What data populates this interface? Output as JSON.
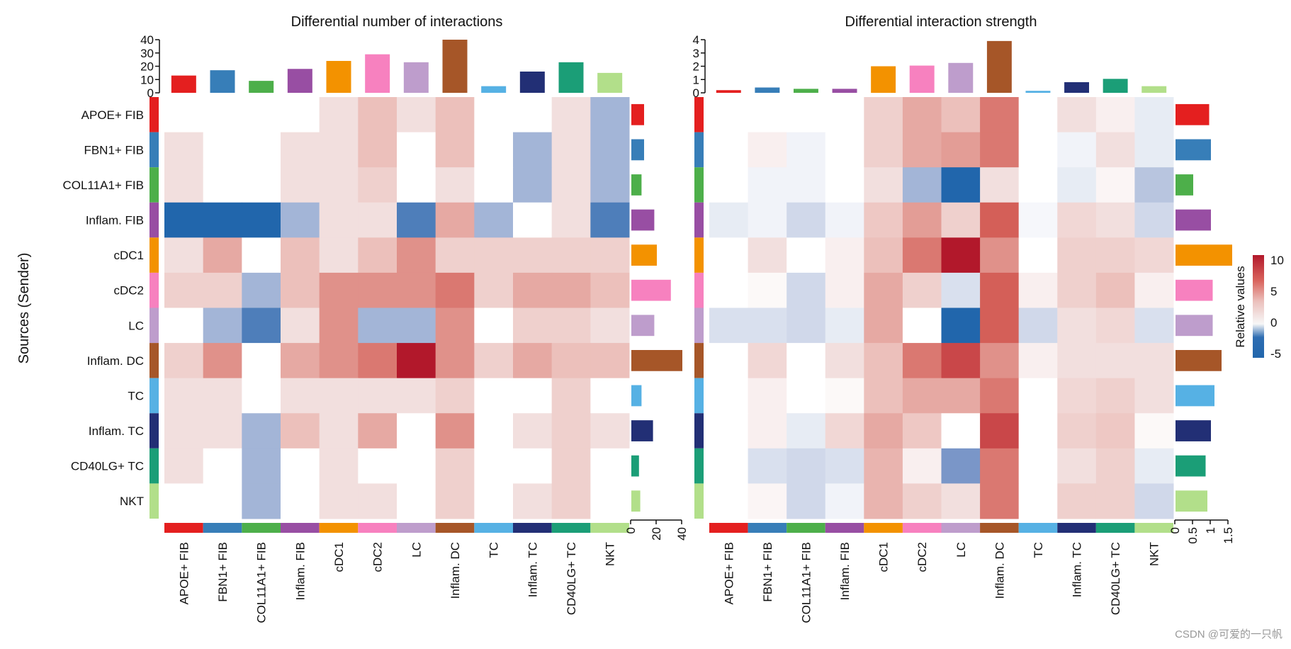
{
  "chart_data": [
    {
      "type": "heatmap",
      "title": "Differential number of interactions",
      "ylabel": "Sources (Sender)",
      "rows": [
        "APOE+ FIB",
        "FBN1+ FIB",
        "COL11A1+ FIB",
        "Inflam. FIB",
        "cDC1",
        "cDC2",
        "LC",
        "Inflam. DC",
        "TC",
        "Inflam. TC",
        "CD40LG+ TC",
        "NKT"
      ],
      "columns": [
        "APOE+ FIB",
        "FBN1+ FIB",
        "COL11A1+ FIB",
        "Inflam. FIB",
        "cDC1",
        "cDC2",
        "LC",
        "Inflam. DC",
        "TC",
        "Inflam. TC",
        "CD40LG+ TC",
        "NKT"
      ],
      "values": [
        [
          0,
          0,
          0,
          0,
          1,
          3,
          1,
          3,
          0,
          0,
          1,
          -2
        ],
        [
          1,
          0,
          0,
          1,
          1,
          3,
          0,
          3,
          0,
          -2,
          1,
          -2
        ],
        [
          1,
          0,
          0,
          1,
          1,
          2,
          0,
          1,
          0,
          -2,
          1,
          -2
        ],
        [
          -5,
          -5,
          -5,
          -2,
          1,
          1,
          -4,
          4,
          -2,
          0,
          1,
          -4
        ],
        [
          1,
          4,
          0,
          3,
          1,
          3,
          5,
          2,
          2,
          2,
          2,
          2
        ],
        [
          2,
          2,
          -2,
          3,
          5,
          5,
          5,
          6,
          2,
          4,
          4,
          3
        ],
        [
          0,
          -2,
          -4,
          1,
          5,
          -2,
          -2,
          5,
          0,
          2,
          2,
          1
        ],
        [
          2,
          5,
          0,
          4,
          5,
          6,
          10,
          5,
          2,
          4,
          3,
          3
        ],
        [
          1,
          1,
          0,
          1,
          1,
          1,
          1,
          2,
          0,
          0,
          2,
          0
        ],
        [
          1,
          1,
          -2,
          3,
          1,
          4,
          0,
          5,
          0,
          1,
          2,
          1
        ],
        [
          1,
          0,
          -2,
          0,
          1,
          0,
          0,
          2,
          0,
          0,
          2,
          0
        ],
        [
          0,
          0,
          -2,
          0,
          1,
          1,
          0,
          2,
          0,
          1,
          2,
          0
        ]
      ],
      "top_bars": {
        "values": [
          13,
          17,
          9,
          18,
          24,
          29,
          23,
          40,
          5,
          16,
          23,
          15
        ],
        "ylim": [
          0,
          40
        ],
        "ticks": [
          "0",
          "10",
          "20",
          "30",
          "40"
        ]
      },
      "right_bars": {
        "values": [
          10,
          10,
          8,
          18,
          20,
          31,
          18,
          40,
          8,
          17,
          6,
          7
        ],
        "xlim": [
          0,
          40
        ],
        "ticks": [
          "0",
          "20",
          "40"
        ]
      }
    },
    {
      "type": "heatmap",
      "title": "Differential interaction strength",
      "rows": [
        "APOE+ FIB",
        "FBN1+ FIB",
        "COL11A1+ FIB",
        "Inflam. FIB",
        "cDC1",
        "cDC2",
        "LC",
        "Inflam. DC",
        "TC",
        "Inflam. TC",
        "CD40LG+ TC",
        "NKT"
      ],
      "columns": [
        "APOE+ FIB",
        "FBN1+ FIB",
        "COL11A1+ FIB",
        "Inflam. FIB",
        "cDC1",
        "cDC2",
        "LC",
        "Inflam. DC",
        "TC",
        "Inflam. TC",
        "CD40LG+ TC",
        "NKT"
      ],
      "values": [
        [
          0,
          0,
          0,
          0,
          2,
          4,
          3,
          6,
          0,
          1,
          0.5,
          -0.5
        ],
        [
          0,
          0.5,
          -0.3,
          0,
          2,
          4,
          4.5,
          6,
          0,
          -0.3,
          1,
          -0.5
        ],
        [
          0,
          -0.3,
          -0.3,
          0,
          1,
          -2,
          -5,
          1,
          0,
          -0.5,
          0.3,
          -1.5
        ],
        [
          -0.5,
          -0.3,
          -1,
          -0.3,
          2.5,
          4.5,
          2,
          7,
          -0.2,
          1.5,
          1,
          -1
        ],
        [
          0,
          1,
          0,
          0.5,
          3,
          6,
          10,
          5,
          0,
          2,
          2,
          1.5
        ],
        [
          0,
          0.2,
          -1,
          0.5,
          4,
          2,
          -0.8,
          7,
          0.5,
          2,
          3,
          0.5
        ],
        [
          -0.8,
          -0.8,
          -1,
          -0.5,
          4,
          0,
          -5,
          7,
          -1,
          1,
          1.5,
          -0.8
        ],
        [
          0,
          1.5,
          0,
          1,
          3,
          6,
          8,
          5,
          0.5,
          1,
          1,
          1
        ],
        [
          0,
          0.5,
          0,
          0.2,
          3,
          4,
          4,
          6,
          0,
          1.5,
          2,
          1
        ],
        [
          0,
          0.5,
          -0.5,
          1.5,
          4,
          2.5,
          0,
          8,
          0,
          2,
          2.5,
          0.2
        ],
        [
          0,
          -0.8,
          -1,
          -0.8,
          3.5,
          0.5,
          -3,
          6,
          0,
          1,
          2,
          -0.5
        ],
        [
          0,
          0.3,
          -1,
          -0.3,
          3.5,
          2,
          1,
          6,
          0,
          2,
          2,
          -1
        ]
      ],
      "top_bars": {
        "values": [
          0.2,
          0.4,
          0.3,
          0.3,
          2.0,
          2.05,
          2.25,
          3.9,
          0.15,
          0.8,
          1.05,
          0.5
        ],
        "ylim": [
          0,
          4
        ],
        "ticks": [
          "0",
          "1",
          "2",
          "3",
          "4"
        ]
      },
      "right_bars": {
        "values": [
          0.95,
          1.0,
          0.5,
          1.0,
          1.6,
          1.05,
          1.05,
          1.3,
          1.1,
          1.0,
          0.85,
          0.9
        ],
        "xlim": [
          0,
          1.5
        ],
        "ticks": [
          "0",
          "0.5",
          "1",
          "1.5"
        ]
      }
    }
  ],
  "legend": {
    "title": "Relative values",
    "ticks": [
      "10",
      "5",
      "0",
      "-5"
    ],
    "tick_values": [
      10,
      5,
      0,
      -5
    ],
    "range": [
      -5,
      10.8
    ],
    "low_color": "#2166AC",
    "high_color": "#B2182B"
  },
  "group_colors": [
    "#E41F1F",
    "#377EB8",
    "#4DAF4A",
    "#984EA3",
    "#F39200",
    "#F781BF",
    "#BE9DCC",
    "#A65628",
    "#56B1E4",
    "#222F75",
    "#1B9E77",
    "#B2DF8A"
  ],
  "watermark": "CSDN @可爱的一只帆"
}
